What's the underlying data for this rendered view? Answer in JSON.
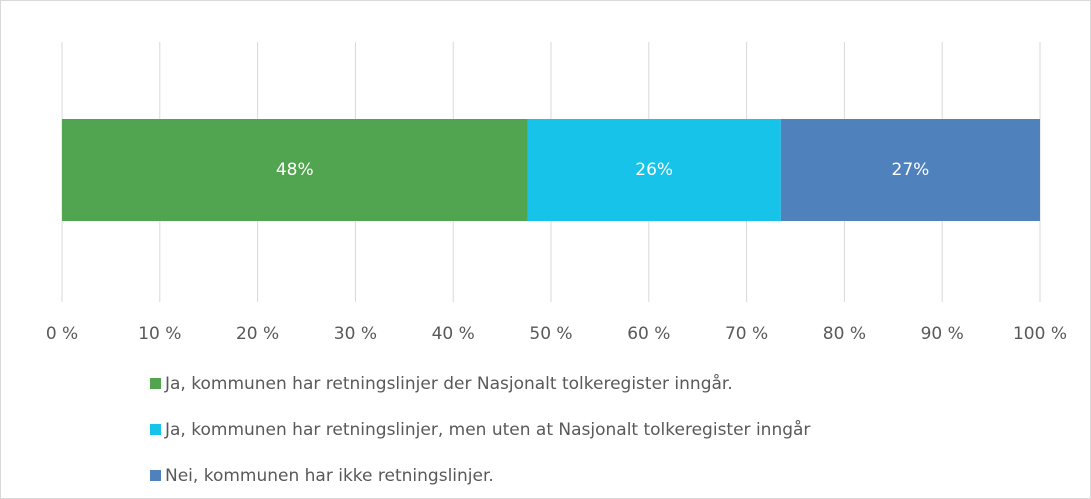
{
  "chart_data": {
    "type": "bar",
    "orientation": "horizontal",
    "stacked": true,
    "series": [
      {
        "name": "Ja, kommunen har retningslinjer der Nasjonalt tolkeregister inngår.",
        "color": "#52a550",
        "values": [
          47.6
        ],
        "value_labels": [
          "48%"
        ]
      },
      {
        "name": "Ja, kommunen har retningslinjer, men uten at Nasjonalt tolkeregister inngår",
        "color": "#17c3e8",
        "values": [
          25.9
        ],
        "value_labels": [
          "26%"
        ]
      },
      {
        "name": "Nei, kommunen har ikke retningslinjer.",
        "color": "#4f81bd",
        "values": [
          26.5
        ],
        "value_labels": [
          "27%"
        ]
      }
    ],
    "xlim": [
      0,
      100
    ],
    "xticks": [
      {
        "value": 0,
        "label": "0 %"
      },
      {
        "value": 10,
        "label": "10 %"
      },
      {
        "value": 20,
        "label": "20 %"
      },
      {
        "value": 30,
        "label": "30 %"
      },
      {
        "value": 40,
        "label": "40 %"
      },
      {
        "value": 50,
        "label": "50 %"
      },
      {
        "value": 60,
        "label": "60 %"
      },
      {
        "value": 70,
        "label": "70 %"
      },
      {
        "value": 80,
        "label": "80 %"
      },
      {
        "value": 90,
        "label": "90 %"
      },
      {
        "value": 100,
        "label": "100 %"
      }
    ],
    "grid": true,
    "legend": "bottom"
  }
}
